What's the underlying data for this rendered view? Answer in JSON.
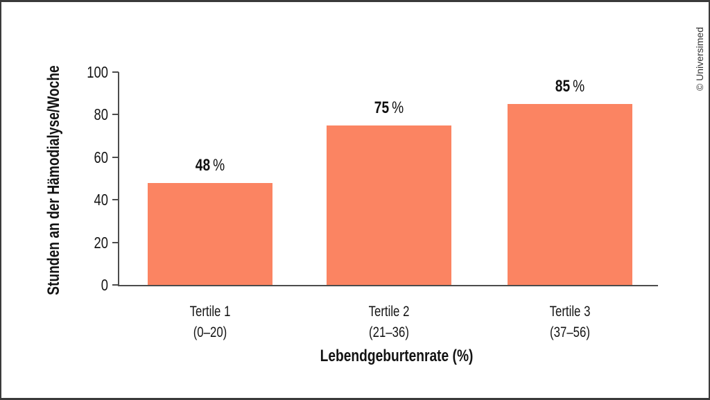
{
  "page": {
    "watermark": "© Universimed"
  },
  "chart_data": {
    "type": "bar",
    "title": "",
    "categories": [
      "Tertile 1",
      "Tertile 2",
      "Tertile 3"
    ],
    "category_sublabels": [
      "(0–20)",
      "(21–36)",
      "(37–56)"
    ],
    "values": [
      48,
      75,
      85
    ],
    "value_labels": [
      "48 %",
      "75 %",
      "85 %"
    ],
    "value_suffix": "%",
    "xlabel": "Lebendgeburtenrate (%)",
    "ylabel": "Stunden an der Hämodialyse/Woche",
    "ylim": [
      0,
      100
    ],
    "yticks": [
      0,
      20,
      40,
      60,
      80,
      100
    ],
    "grid": false,
    "legend": false,
    "colors": {
      "bar": "#FB8462",
      "axis": "#4c4c4c",
      "text": "#131313",
      "frame": "#3a3a3a"
    }
  }
}
